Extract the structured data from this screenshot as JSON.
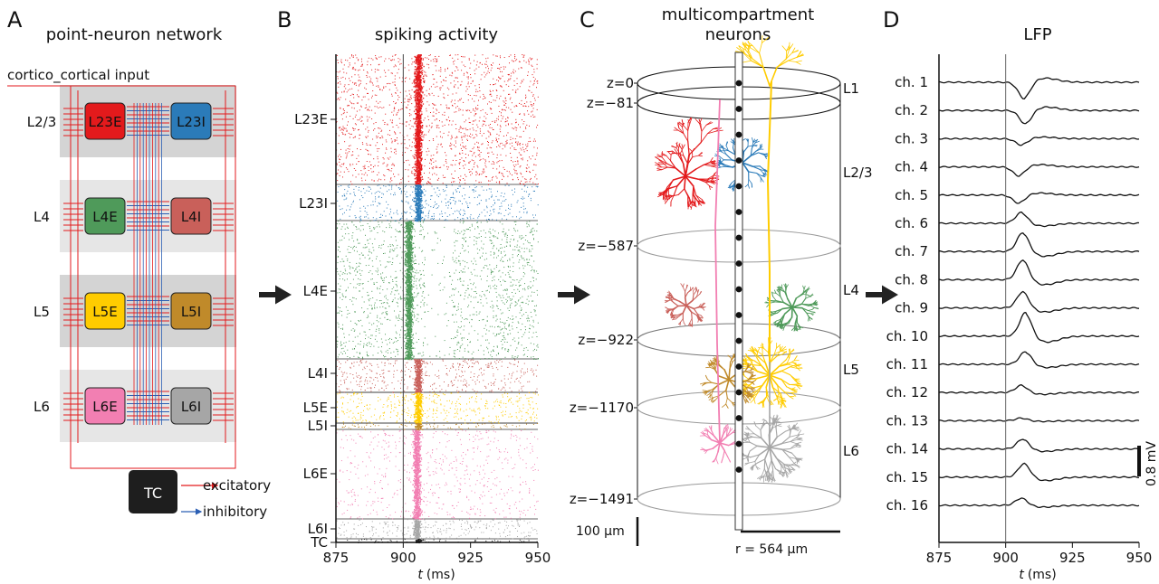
{
  "colors": {
    "L23E": "#e31a1c",
    "L23I": "#2b7bb9",
    "L4E": "#4f9a5a",
    "L4I": "#c9605a",
    "L5E": "#ffcc00",
    "L5I": "#c08a2a",
    "L6E": "#f27fb2",
    "L6I": "#a6a6a6",
    "TC": "#1e1e1e",
    "excitatory": "#e31a1c",
    "inhibitory": "#2b5fb4",
    "layer_bg_dark": "#d4d4d4",
    "layer_bg_light": "#e6e6e6"
  },
  "panelA": {
    "letter": "A",
    "title": "point-neuron network",
    "input_label": "cortico_cortical input",
    "layers": [
      {
        "name": "L2/3",
        "exc": "L23E",
        "inh": "L23I"
      },
      {
        "name": "L4",
        "exc": "L4E",
        "inh": "L4I"
      },
      {
        "name": "L5",
        "exc": "L5E",
        "inh": "L5I"
      },
      {
        "name": "L6",
        "exc": "L6E",
        "inh": "L6I"
      }
    ],
    "tc_label": "TC",
    "legend_excitatory": "excitatory",
    "legend_inhibitory": "inhibitory"
  },
  "panelB": {
    "letter": "B",
    "title": "spiking activity",
    "populations": [
      "L23E",
      "L23I",
      "L4E",
      "L4I",
      "L5E",
      "L5I",
      "L6E",
      "L6I",
      "TC"
    ],
    "xticks": [
      "875",
      "900",
      "925",
      "950"
    ],
    "xlabel_var": "t",
    "xlabel_unit": "(ms)"
  },
  "panelC": {
    "letter": "C",
    "title_line1": "multicompartment",
    "title_line2": "neurons",
    "z_labels": [
      "z=0",
      "z=−81",
      "z=−587",
      "z=−922",
      "z=−1170",
      "z=−1491"
    ],
    "layer_labels": [
      "L1",
      "L2/3",
      "L4",
      "L5",
      "L6"
    ],
    "scalebar": "100 μm",
    "radius": "r = 564 μm"
  },
  "panelD": {
    "letter": "D",
    "title": "LFP",
    "channels": [
      "ch. 1",
      "ch. 2",
      "ch. 3",
      "ch. 4",
      "ch. 5",
      "ch. 6",
      "ch. 7",
      "ch. 8",
      "ch. 9",
      "ch. 10",
      "ch. 11",
      "ch. 12",
      "ch. 13",
      "ch. 14",
      "ch. 15",
      "ch. 16"
    ],
    "xticks": [
      "875",
      "900",
      "925",
      "950"
    ],
    "xlabel_var": "t",
    "xlabel_unit": "(ms)",
    "scalebar": "0.8 mV"
  },
  "chart_data": [
    {
      "type": "scatter",
      "title": "spiking activity",
      "xlabel": "t (ms)",
      "xlim": [
        875,
        950
      ],
      "categories": [
        "L23E",
        "L23I",
        "L4E",
        "L4I",
        "L5E",
        "L5I",
        "L6E",
        "L6I",
        "TC"
      ],
      "stimulus_time": 900
    },
    {
      "type": "line",
      "title": "LFP",
      "xlabel": "t (ms)",
      "xlim": [
        875,
        950
      ],
      "series": [
        {
          "name": "ch. 1",
          "amplitude": -0.9,
          "lag": 7
        },
        {
          "name": "ch. 2",
          "amplitude": -0.75,
          "lag": 7.5
        },
        {
          "name": "ch. 3",
          "amplitude": -0.35,
          "lag": 6
        },
        {
          "name": "ch. 4",
          "amplitude": -0.5,
          "lag": 5
        },
        {
          "name": "ch. 5",
          "amplitude": -0.45,
          "lag": 5
        },
        {
          "name": "ch. 6",
          "amplitude": 0.6,
          "lag": 6
        },
        {
          "name": "ch. 7",
          "amplitude": 1.05,
          "lag": 6.5
        },
        {
          "name": "ch. 8",
          "amplitude": 1.1,
          "lag": 6.5
        },
        {
          "name": "ch. 9",
          "amplitude": 0.9,
          "lag": 6.5
        },
        {
          "name": "ch. 10",
          "amplitude": 1.3,
          "lag": 7.5
        },
        {
          "name": "ch. 11",
          "amplitude": 0.7,
          "lag": 7.5
        },
        {
          "name": "ch. 12",
          "amplitude": 0.4,
          "lag": 6
        },
        {
          "name": "ch. 13",
          "amplitude": 0.15,
          "lag": 6
        },
        {
          "name": "ch. 14",
          "amplitude": 0.55,
          "lag": 6.5
        },
        {
          "name": "ch. 15",
          "amplitude": 0.75,
          "lag": 7
        },
        {
          "name": "ch. 16",
          "amplitude": 0.4,
          "lag": 6
        }
      ],
      "scalebar_mV": 0.8
    }
  ]
}
